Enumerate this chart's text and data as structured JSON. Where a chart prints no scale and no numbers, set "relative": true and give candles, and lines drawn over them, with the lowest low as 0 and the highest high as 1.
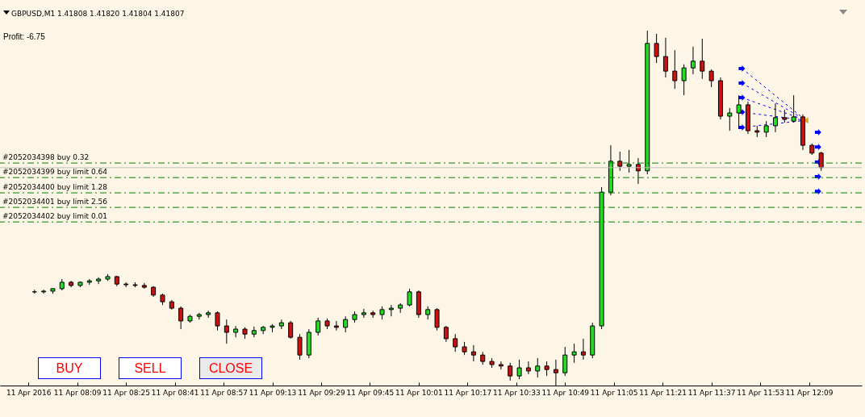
{
  "chart_data": {
    "type": "candlestick",
    "title": "GBPUSD,M1  1.41808 1.41820 1.41804 1.41807",
    "relative": true,
    "grid": false,
    "legend": false,
    "annotations": [
      "Profit: -6.75",
      "BUY",
      "SELL",
      "CLOSE"
    ],
    "xlim": [
      "2016-04-11T07:45",
      "2016-04-11T12:25"
    ],
    "xticks": [
      {
        "value": "2016-04-11T07:53",
        "label": "11 Apr 2016"
      },
      {
        "value": "2016-04-11T08:09",
        "label": "11 Apr 08:09"
      },
      {
        "value": "2016-04-11T08:25",
        "label": "11 Apr 08:25"
      },
      {
        "value": "2016-04-11T08:41",
        "label": "11 Apr 08:41"
      },
      {
        "value": "2016-04-11T08:57",
        "label": "11 Apr 08:57"
      },
      {
        "value": "2016-04-11T09:13",
        "label": "11 Apr 09:13"
      },
      {
        "value": "2016-04-11T09:29",
        "label": "11 Apr 09:29"
      },
      {
        "value": "2016-04-11T09:45",
        "label": "11 Apr 09:45"
      },
      {
        "value": "2016-04-11T10:01",
        "label": "11 Apr 10:01"
      },
      {
        "value": "2016-04-11T10:17",
        "label": "11 Apr 10:17"
      },
      {
        "value": "2016-04-11T10:33",
        "label": "11 Apr 10:33"
      },
      {
        "value": "2016-04-11T10:49",
        "label": "11 Apr 10:49"
      },
      {
        "value": "2016-04-11T11:05",
        "label": "11 Apr 11:05"
      },
      {
        "value": "2016-04-11T11:21",
        "label": "11 Apr 11:21"
      },
      {
        "value": "2016-04-11T11:37",
        "label": "11 Apr 11:37"
      },
      {
        "value": "2016-04-11T11:53",
        "label": "11 Apr 11:53"
      },
      {
        "value": "2016-04-11T12:09",
        "label": "11 Apr 12:09"
      }
    ],
    "x": [
      "2016-04-11T07:55",
      "2016-04-11T07:58",
      "2016-04-11T08:01",
      "2016-04-11T08:04",
      "2016-04-11T08:07",
      "2016-04-11T08:10",
      "2016-04-11T08:13",
      "2016-04-11T08:16",
      "2016-04-11T08:19",
      "2016-04-11T08:22",
      "2016-04-11T08:25",
      "2016-04-11T08:28",
      "2016-04-11T08:31",
      "2016-04-11T08:34",
      "2016-04-11T08:37",
      "2016-04-11T08:40",
      "2016-04-11T08:43",
      "2016-04-11T08:46",
      "2016-04-11T08:49",
      "2016-04-11T08:52",
      "2016-04-11T08:55",
      "2016-04-11T08:58",
      "2016-04-11T09:01",
      "2016-04-11T09:04",
      "2016-04-11T09:07",
      "2016-04-11T09:10",
      "2016-04-11T09:13",
      "2016-04-11T09:16",
      "2016-04-11T09:19",
      "2016-04-11T09:22",
      "2016-04-11T09:25",
      "2016-04-11T09:28",
      "2016-04-11T09:31",
      "2016-04-11T09:34",
      "2016-04-11T09:37",
      "2016-04-11T09:40",
      "2016-04-11T09:43",
      "2016-04-11T09:46",
      "2016-04-11T09:49",
      "2016-04-11T09:52",
      "2016-04-11T09:55",
      "2016-04-11T09:58",
      "2016-04-11T10:01",
      "2016-04-11T10:04",
      "2016-04-11T10:07",
      "2016-04-11T10:10",
      "2016-04-11T10:13",
      "2016-04-11T10:16",
      "2016-04-11T10:19",
      "2016-04-11T10:22",
      "2016-04-11T10:25",
      "2016-04-11T10:28",
      "2016-04-11T10:31",
      "2016-04-11T10:34",
      "2016-04-11T10:37",
      "2016-04-11T10:40",
      "2016-04-11T10:43",
      "2016-04-11T10:46",
      "2016-04-11T10:49",
      "2016-04-11T10:52",
      "2016-04-11T10:55",
      "2016-04-11T10:58",
      "2016-04-11T11:01",
      "2016-04-11T11:04",
      "2016-04-11T11:07",
      "2016-04-11T11:10",
      "2016-04-11T11:13",
      "2016-04-11T11:16",
      "2016-04-11T11:19",
      "2016-04-11T11:22",
      "2016-04-11T11:25",
      "2016-04-11T11:28",
      "2016-04-11T11:31",
      "2016-04-11T11:34",
      "2016-04-11T11:37",
      "2016-04-11T11:40",
      "2016-04-11T11:43",
      "2016-04-11T11:46",
      "2016-04-11T11:49",
      "2016-04-11T11:52",
      "2016-04-11T11:55",
      "2016-04-11T11:58",
      "2016-04-11T12:01",
      "2016-04-11T12:04",
      "2016-04-11T12:07",
      "2016-04-11T12:10",
      "2016-04-11T12:13"
    ],
    "ohlc": [
      [
        0.264,
        0.27,
        0.259,
        0.264
      ],
      [
        0.264,
        0.27,
        0.259,
        0.266
      ],
      [
        0.266,
        0.273,
        0.259,
        0.273
      ],
      [
        0.273,
        0.3,
        0.268,
        0.291
      ],
      [
        0.291,
        0.295,
        0.277,
        0.282
      ],
      [
        0.282,
        0.293,
        0.277,
        0.291
      ],
      [
        0.291,
        0.3,
        0.284,
        0.295
      ],
      [
        0.295,
        0.305,
        0.286,
        0.3
      ],
      [
        0.3,
        0.314,
        0.295,
        0.307
      ],
      [
        0.307,
        0.309,
        0.28,
        0.286
      ],
      [
        0.286,
        0.291,
        0.277,
        0.284
      ],
      [
        0.284,
        0.291,
        0.277,
        0.282
      ],
      [
        0.282,
        0.289,
        0.273,
        0.277
      ],
      [
        0.277,
        0.28,
        0.25,
        0.255
      ],
      [
        0.255,
        0.259,
        0.227,
        0.236
      ],
      [
        0.236,
        0.241,
        0.214,
        0.218
      ],
      [
        0.218,
        0.223,
        0.159,
        0.182
      ],
      [
        0.182,
        0.2,
        0.177,
        0.195
      ],
      [
        0.195,
        0.205,
        0.186,
        0.2
      ],
      [
        0.2,
        0.211,
        0.191,
        0.205
      ],
      [
        0.205,
        0.209,
        0.155,
        0.168
      ],
      [
        0.168,
        0.186,
        0.118,
        0.15
      ],
      [
        0.15,
        0.168,
        0.136,
        0.159
      ],
      [
        0.159,
        0.164,
        0.132,
        0.145
      ],
      [
        0.145,
        0.166,
        0.136,
        0.155
      ],
      [
        0.155,
        0.168,
        0.145,
        0.164
      ],
      [
        0.164,
        0.173,
        0.15,
        0.168
      ],
      [
        0.168,
        0.186,
        0.159,
        0.177
      ],
      [
        0.177,
        0.182,
        0.132,
        0.136
      ],
      [
        0.136,
        0.145,
        0.073,
        0.086
      ],
      [
        0.086,
        0.159,
        0.077,
        0.15
      ],
      [
        0.15,
        0.191,
        0.141,
        0.182
      ],
      [
        0.182,
        0.189,
        0.159,
        0.168
      ],
      [
        0.168,
        0.182,
        0.155,
        0.164
      ],
      [
        0.164,
        0.195,
        0.15,
        0.186
      ],
      [
        0.186,
        0.209,
        0.177,
        0.2
      ],
      [
        0.2,
        0.216,
        0.191,
        0.205
      ],
      [
        0.205,
        0.211,
        0.191,
        0.2
      ],
      [
        0.2,
        0.223,
        0.186,
        0.214
      ],
      [
        0.214,
        0.227,
        0.195,
        0.218
      ],
      [
        0.218,
        0.232,
        0.205,
        0.227
      ],
      [
        0.227,
        0.273,
        0.223,
        0.264
      ],
      [
        0.264,
        0.268,
        0.191,
        0.2
      ],
      [
        0.2,
        0.223,
        0.186,
        0.214
      ],
      [
        0.214,
        0.218,
        0.155,
        0.164
      ],
      [
        0.164,
        0.168,
        0.123,
        0.132
      ],
      [
        0.132,
        0.145,
        0.095,
        0.109
      ],
      [
        0.109,
        0.123,
        0.086,
        0.095
      ],
      [
        0.095,
        0.114,
        0.068,
        0.086
      ],
      [
        0.086,
        0.095,
        0.059,
        0.068
      ],
      [
        0.068,
        0.077,
        0.05,
        0.059
      ],
      [
        0.059,
        0.068,
        0.045,
        0.055
      ],
      [
        0.055,
        0.064,
        0.014,
        0.027
      ],
      [
        0.027,
        0.073,
        0.018,
        0.05
      ],
      [
        0.05,
        0.068,
        0.032,
        0.041
      ],
      [
        0.041,
        0.077,
        0.023,
        0.055
      ],
      [
        0.055,
        0.068,
        0.027,
        0.045
      ],
      [
        0.045,
        0.073,
        0,
        0.036
      ],
      [
        0.036,
        0.109,
        0.027,
        0.086
      ],
      [
        0.086,
        0.118,
        0.064,
        0.095
      ],
      [
        0.095,
        0.132,
        0.073,
        0.086
      ],
      [
        0.086,
        0.177,
        0.077,
        0.168
      ],
      [
        0.168,
        0.559,
        0.159,
        0.545
      ],
      [
        0.545,
        0.677,
        0.536,
        0.632
      ],
      [
        0.632,
        0.659,
        0.605,
        0.618
      ],
      [
        0.618,
        0.664,
        0.6,
        0.623
      ],
      [
        0.623,
        0.641,
        0.568,
        0.605
      ],
      [
        0.605,
        1,
        0.595,
        0.964
      ],
      [
        0.964,
        0.991,
        0.909,
        0.927
      ],
      [
        0.927,
        0.98,
        0.868,
        0.886
      ],
      [
        0.886,
        0.945,
        0.836,
        0.859
      ],
      [
        0.859,
        0.905,
        0.818,
        0.895
      ],
      [
        0.895,
        0.955,
        0.877,
        0.914
      ],
      [
        0.914,
        0.977,
        0.864,
        0.886
      ],
      [
        0.886,
        0.891,
        0.841,
        0.859
      ],
      [
        0.859,
        0.868,
        0.75,
        0.759
      ],
      [
        0.759,
        0.782,
        0.718,
        0.768
      ],
      [
        0.768,
        0.818,
        0.723,
        0.791
      ],
      [
        0.791,
        0.8,
        0.709,
        0.718
      ],
      [
        0.718,
        0.732,
        0.7,
        0.714
      ],
      [
        0.714,
        0.745,
        0.7,
        0.732
      ],
      [
        0.732,
        0.795,
        0.714,
        0.755
      ],
      [
        0.755,
        0.777,
        0.741,
        0.75
      ],
      [
        0.745,
        0.818,
        0.741,
        0.757
      ],
      [
        0.757,
        0.764,
        0.664,
        0.677
      ],
      [
        0.677,
        0.682,
        0.65,
        0.655
      ],
      [
        0.655,
        0.659,
        0.605,
        0.614
      ]
    ],
    "ref_lines": [
      {
        "axis": "y",
        "value": 0.627,
        "label": "#2052034398 buy 0.32",
        "color": "#008000",
        "line_style": "dashed"
      },
      {
        "axis": "y",
        "value": 0.586,
        "label": "#2052034399 buy limit 0.64",
        "color": "#008000",
        "line_style": "dashed"
      },
      {
        "axis": "y",
        "value": 0.543,
        "label": "#2052034400 buy limit 1.28",
        "color": "#008000",
        "line_style": "dashed"
      },
      {
        "axis": "y",
        "value": 0.502,
        "label": "#2052034401 buy limit 2.56",
        "color": "#008000",
        "line_style": "dashed"
      },
      {
        "axis": "y",
        "value": 0.461,
        "label": "#2052034402 buy limit 0.01",
        "color": "#008000",
        "line_style": "dashed"
      },
      {
        "axis": "y",
        "value": 0.614,
        "color": "#c0c0c0",
        "line_style": "solid"
      }
    ]
  }
}
